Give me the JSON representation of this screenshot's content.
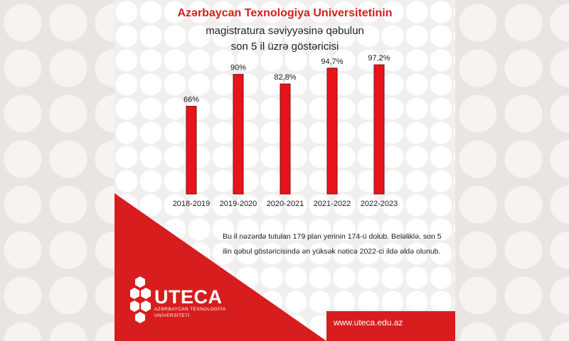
{
  "header": {
    "line1": "Azərbaycan Texnologiya Universitetinin",
    "line2": "magistratura səviyyəsinə qəbulun",
    "line3": "son 5 il üzrə göstəricisi"
  },
  "chart_data": {
    "type": "bar",
    "categories": [
      "2018-2019",
      "2019-2020",
      "2020-2021",
      "2021-2022",
      "2022-2023"
    ],
    "values": [
      66,
      90,
      82.8,
      94.7,
      97.2
    ],
    "value_labels": [
      "66%",
      "90%",
      "82,8%",
      "94,7%",
      "97,2%"
    ],
    "ylim": [
      0,
      100
    ],
    "bar_color": "#e8141b",
    "grid": false,
    "axes_visible": false
  },
  "description": "Bu il nəzərdə tutulan 179 plan yerinin 174-ü dolub. Beləliklə, son 5 ilin qəbul göstəricisində ən yüksək nəticə 2022-ci ildə əldə olunub.",
  "footer": {
    "url": "www.uteca.edu.az"
  },
  "logo": {
    "word": "UTECA",
    "sub1": "AZƏRBAYCAN TEXNOLOGİYA",
    "sub2": "UNİVERSİTETİ"
  },
  "colors": {
    "brand_red": "#d71d1d",
    "bar_red": "#e8141b"
  }
}
